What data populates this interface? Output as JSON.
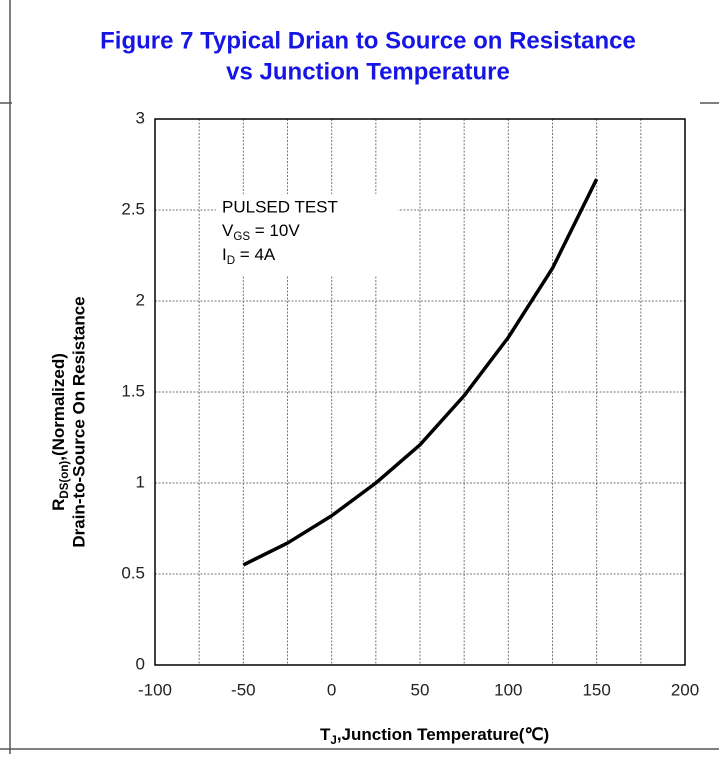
{
  "chart_data": {
    "type": "line",
    "title": [
      "Figure 7 Typical Drian to Source on Resistance",
      "vs Junction Temperature"
    ],
    "title_color": "#1515e6",
    "x": [
      -50,
      -25,
      0,
      25,
      50,
      75,
      100,
      125,
      150
    ],
    "series": [
      {
        "color": "#000000",
        "values": [
          0.55,
          0.67,
          0.82,
          1.0,
          1.21,
          1.48,
          1.8,
          2.18,
          2.67
        ]
      }
    ],
    "xlim": [
      -100,
      200
    ],
    "xticks": [
      -100,
      -50,
      0,
      50,
      100,
      150,
      200
    ],
    "xminor": [
      -75,
      -25,
      25,
      75,
      125,
      175
    ],
    "ylim": [
      0,
      3
    ],
    "yticks": [
      0,
      0.5,
      1,
      1.5,
      2,
      2.5,
      3
    ],
    "grid": true,
    "annotation": {
      "line1": "PULSED TEST",
      "line2": [
        "V",
        "GS",
        " = 10V"
      ],
      "line3": [
        "I",
        "D",
        " = 4A"
      ]
    },
    "xlabel": [
      "T",
      "J",
      ",Junction Temperature(℃)"
    ],
    "ylabel": [
      [
        "R",
        "DS(on)",
        ",(Normalized)"
      ],
      "Drain-to-Source On Resistance"
    ]
  }
}
